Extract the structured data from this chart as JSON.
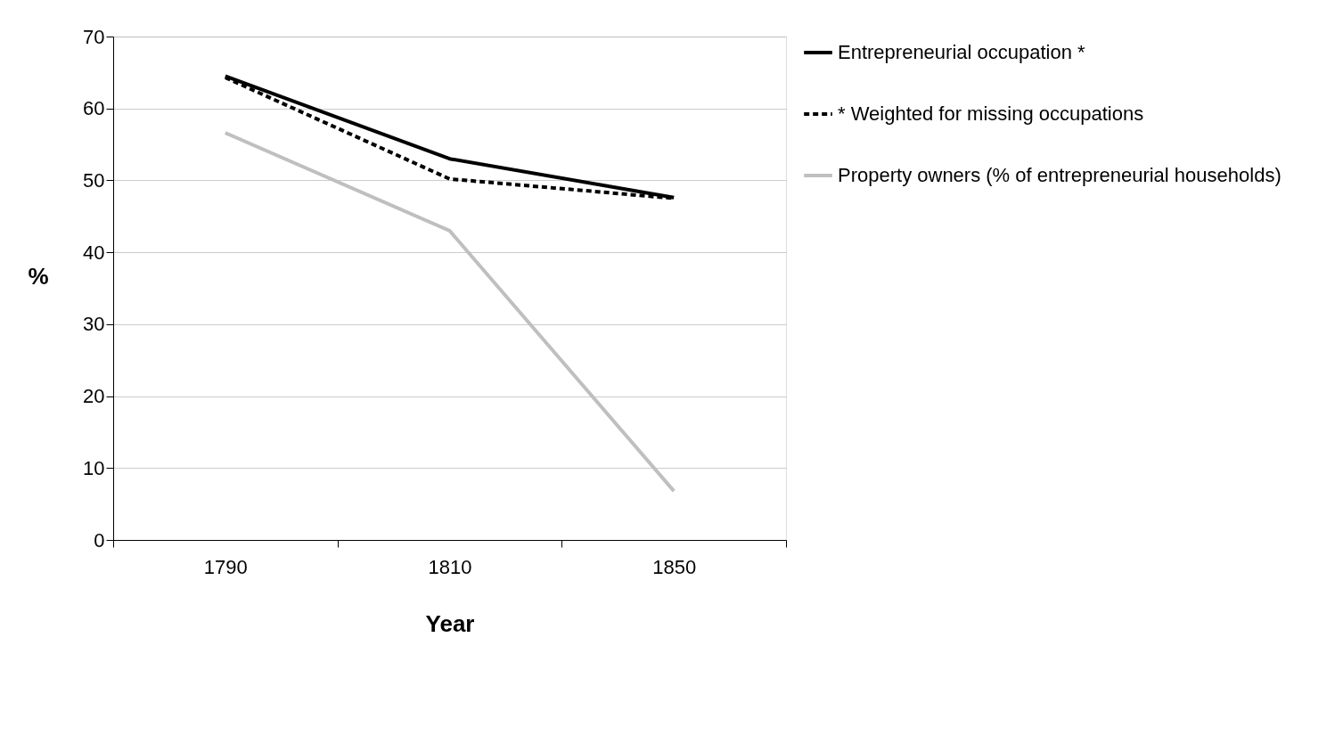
{
  "chart_data": {
    "type": "line",
    "xlabel": "Year",
    "ylabel": "%",
    "categories": [
      "1790",
      "1810",
      "1850"
    ],
    "series": [
      {
        "name": "Entrepreneurial occupation *",
        "color": "#000000",
        "line_style": "solid",
        "values": [
          64.5,
          53.0,
          47.6
        ]
      },
      {
        "name": "* Weighted for missing occupations",
        "color": "#000000",
        "line_style": "dashed",
        "values": [
          64.3,
          50.2,
          47.5
        ]
      },
      {
        "name": "Property owners (% of entrepreneurial households)",
        "color": "#bfbfbf",
        "line_style": "solid",
        "values": [
          56.6,
          43.0,
          6.8
        ]
      }
    ],
    "ylim": [
      0,
      70
    ],
    "yticks": [
      0,
      10,
      20,
      30,
      40,
      50,
      60,
      70
    ],
    "grid": "y",
    "legend": "right"
  }
}
